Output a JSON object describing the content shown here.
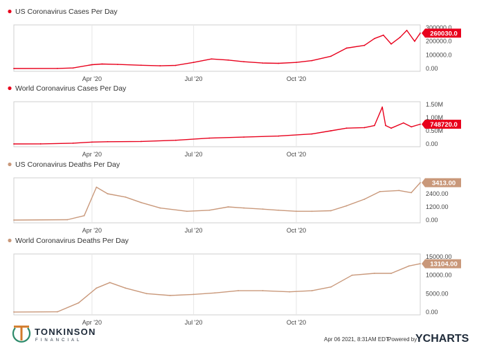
{
  "chart_data": [
    {
      "type": "line",
      "title": "US Coronavirus Cases Per Day",
      "color": "#e8001c",
      "x_ticks": [
        "Apr '20",
        "Jul '20",
        "Oct '20"
      ],
      "y_ticks": [
        "300000.0",
        "200000.0",
        "100000.0",
        "0.00"
      ],
      "y_tick_values": [
        300000,
        200000,
        100000,
        0
      ],
      "ylim": [
        0,
        300000
      ],
      "last_value_label": "260030.0",
      "x": [
        "2020-01-22",
        "2020-03-01",
        "2020-03-15",
        "2020-04-01",
        "2020-04-10",
        "2020-04-24",
        "2020-05-15",
        "2020-06-01",
        "2020-06-15",
        "2020-07-01",
        "2020-07-17",
        "2020-08-01",
        "2020-08-15",
        "2020-09-01",
        "2020-09-15",
        "2020-10-01",
        "2020-10-15",
        "2020-11-01",
        "2020-11-15",
        "2020-12-01",
        "2020-12-10",
        "2020-12-18",
        "2020-12-25",
        "2021-01-02",
        "2021-01-08",
        "2021-01-15",
        "2021-01-20"
      ],
      "values": [
        0,
        500,
        4000,
        28000,
        33000,
        30000,
        24000,
        20000,
        23000,
        45000,
        70000,
        62000,
        50000,
        40000,
        38000,
        45000,
        58000,
        90000,
        150000,
        170000,
        220000,
        245000,
        180000,
        230000,
        280000,
        200000,
        260030
      ]
    },
    {
      "type": "line",
      "title": "World Coronavirus Cases Per Day",
      "color": "#e8001c",
      "x_ticks": [
        "Apr '20",
        "Jul '20",
        "Oct '20"
      ],
      "y_ticks": [
        "1.50M",
        "1.00M",
        "0.50M",
        "0.00"
      ],
      "y_tick_values": [
        1500000,
        1000000,
        500000,
        0
      ],
      "ylim": [
        0,
        1500000
      ],
      "last_value_label": "748720.0",
      "x": [
        "2020-01-22",
        "2020-02-15",
        "2020-03-15",
        "2020-04-01",
        "2020-04-15",
        "2020-05-15",
        "2020-06-15",
        "2020-07-15",
        "2020-08-15",
        "2020-09-15",
        "2020-10-15",
        "2020-11-01",
        "2020-11-15",
        "2020-12-01",
        "2020-12-10",
        "2020-12-17",
        "2020-12-20",
        "2020-12-25",
        "2021-01-05",
        "2021-01-12",
        "2021-01-20"
      ],
      "values": [
        0,
        2000,
        30000,
        70000,
        85000,
        95000,
        140000,
        220000,
        260000,
        300000,
        380000,
        500000,
        600000,
        620000,
        700000,
        1400000,
        700000,
        600000,
        800000,
        650000,
        748720
      ]
    },
    {
      "type": "line",
      "title": "US Coronavirus Deaths Per Day",
      "color": "#c9987a",
      "x_ticks": [
        "Apr '20",
        "Jul '20",
        "Oct '20"
      ],
      "y_ticks": [
        "3600.00",
        "2400.00",
        "1200.00",
        "0.00"
      ],
      "y_tick_values": [
        3600,
        2400,
        1200,
        0
      ],
      "ylim": [
        0,
        3600
      ],
      "last_value_label": "3413.00",
      "x": [
        "2020-01-22",
        "2020-03-10",
        "2020-03-25",
        "2020-04-05",
        "2020-04-15",
        "2020-05-01",
        "2020-05-15",
        "2020-06-01",
        "2020-06-25",
        "2020-07-15",
        "2020-08-01",
        "2020-08-15",
        "2020-09-01",
        "2020-09-15",
        "2020-10-01",
        "2020-10-15",
        "2020-11-01",
        "2020-11-15",
        "2020-12-01",
        "2020-12-15",
        "2021-01-01",
        "2021-01-12",
        "2021-01-20"
      ],
      "values": [
        0,
        30,
        400,
        3000,
        2400,
        2100,
        1600,
        1100,
        800,
        900,
        1200,
        1100,
        1000,
        900,
        800,
        800,
        850,
        1300,
        1900,
        2600,
        2700,
        2500,
        3413
      ]
    },
    {
      "type": "line",
      "title": "World Coronavirus Deaths Per Day",
      "color": "#c9987a",
      "x_ticks": [
        "Apr '20",
        "Jul '20",
        "Oct '20"
      ],
      "y_ticks": [
        "15000.00",
        "10000.00",
        "5000.00",
        "0.00"
      ],
      "y_tick_values": [
        15000,
        10000,
        5000,
        0
      ],
      "ylim": [
        0,
        15000
      ],
      "last_value_label": "13104.00",
      "x": [
        "2020-01-22",
        "2020-03-01",
        "2020-03-20",
        "2020-04-05",
        "2020-04-17",
        "2020-05-01",
        "2020-05-20",
        "2020-06-10",
        "2020-07-01",
        "2020-07-20",
        "2020-08-10",
        "2020-09-01",
        "2020-09-25",
        "2020-10-15",
        "2020-11-01",
        "2020-11-20",
        "2020-12-10",
        "2020-12-25",
        "2021-01-10",
        "2021-01-20"
      ],
      "values": [
        20,
        80,
        2500,
        6500,
        8000,
        6500,
        5000,
        4500,
        4800,
        5200,
        5800,
        5800,
        5500,
        5800,
        6800,
        10000,
        10500,
        10500,
        12500,
        13104
      ]
    }
  ],
  "footer": {
    "timestamp": "Apr 06 2021, 8:31AM EDT.",
    "powered_by": "Powered by",
    "brand": "YCHARTS",
    "logo_name": "TONKINSON",
    "logo_sub": "FINANCIAL"
  }
}
